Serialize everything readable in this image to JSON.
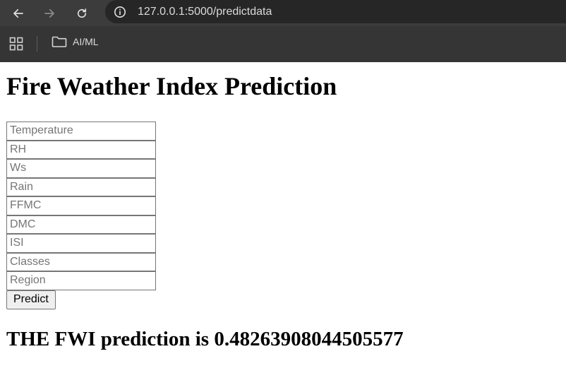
{
  "browser": {
    "url": "127.0.0.1:5000/predictdata",
    "bookmarks": [
      {
        "label": "AI/ML",
        "icon": "folder-icon"
      }
    ]
  },
  "page": {
    "title": "Fire Weather Index Prediction",
    "fields": [
      {
        "placeholder": "Temperature",
        "value": ""
      },
      {
        "placeholder": "RH",
        "value": ""
      },
      {
        "placeholder": "Ws",
        "value": ""
      },
      {
        "placeholder": "Rain",
        "value": ""
      },
      {
        "placeholder": "FFMC",
        "value": ""
      },
      {
        "placeholder": "DMC",
        "value": ""
      },
      {
        "placeholder": "ISI",
        "value": ""
      },
      {
        "placeholder": "Classes",
        "value": ""
      },
      {
        "placeholder": "Region",
        "value": ""
      }
    ],
    "submit_label": "Predict",
    "result_text": "THE FWI prediction is 0.48263908044505577"
  }
}
